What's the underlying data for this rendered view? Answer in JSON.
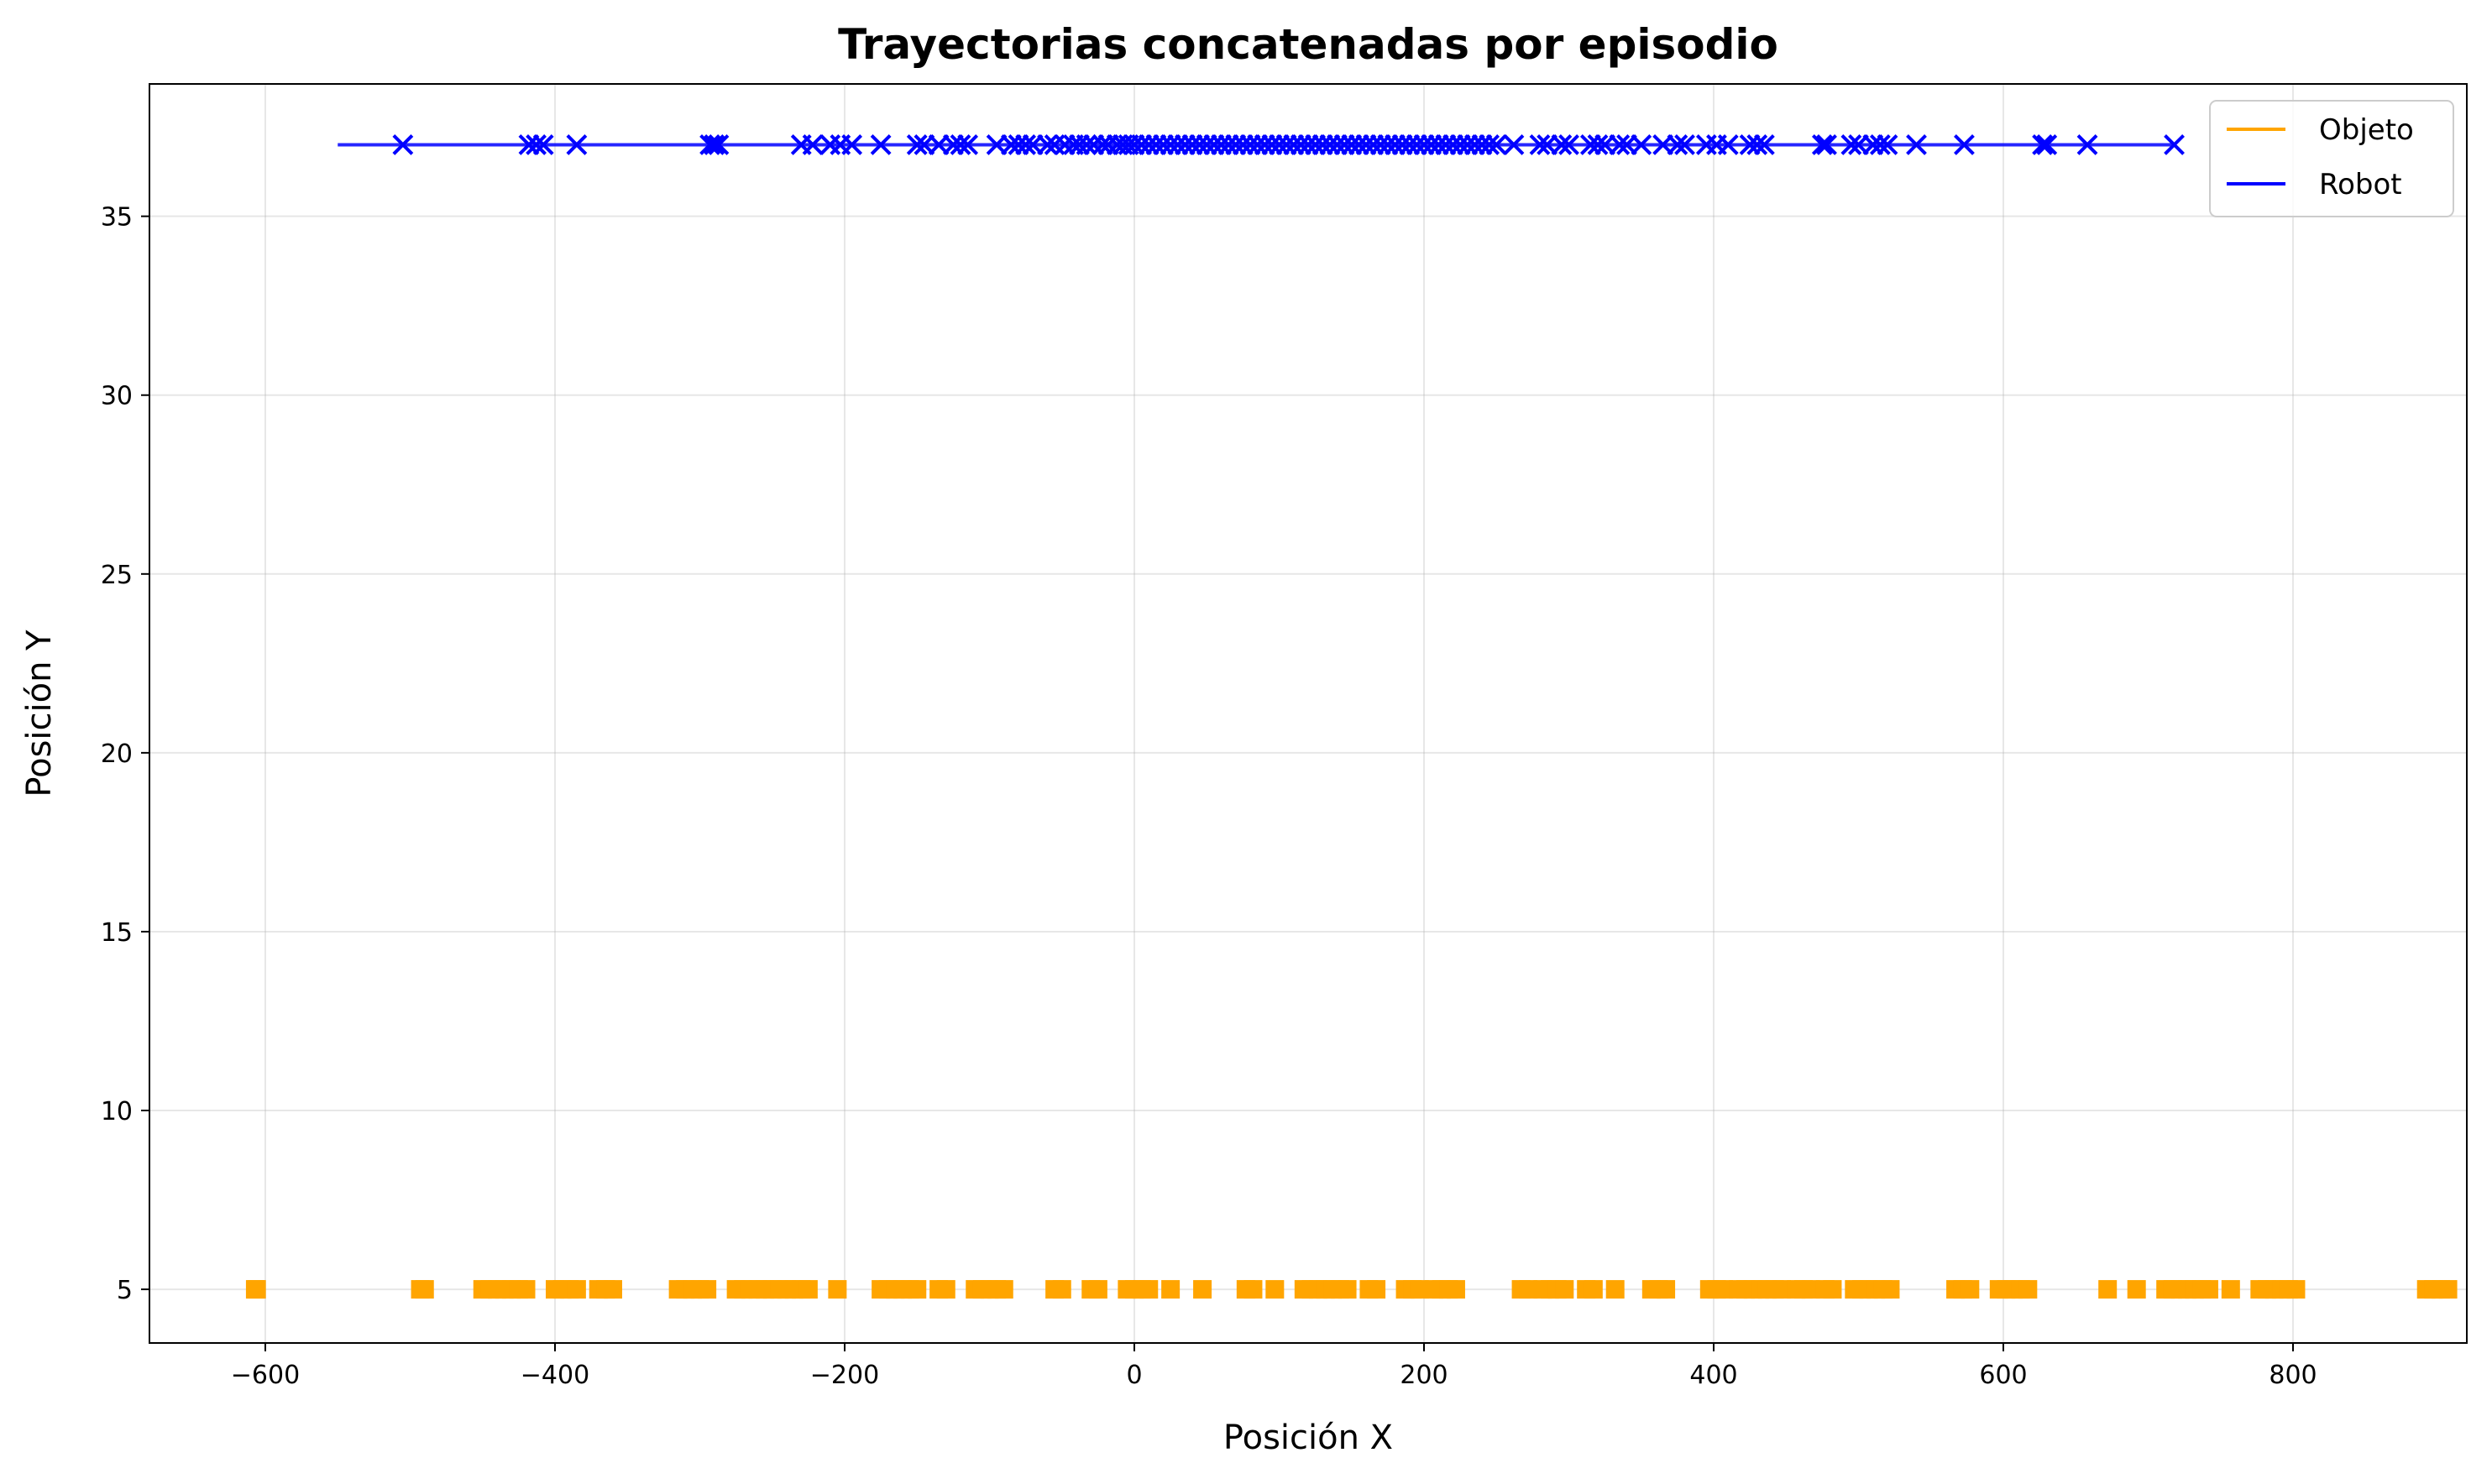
{
  "chart_data": {
    "type": "scatter",
    "title": "Trayectorias concatenadas por episodio",
    "xlabel": "Posición X",
    "ylabel": "Posición Y",
    "xlim": [
      -680,
      920
    ],
    "ylim": [
      3.5,
      38.7
    ],
    "xticks": [
      -600,
      -400,
      -200,
      0,
      200,
      400,
      600,
      800
    ],
    "xtick_labels": [
      "−600",
      "−400",
      "−200",
      "0",
      "200",
      "400",
      "600",
      "800"
    ],
    "yticks": [
      5,
      10,
      15,
      20,
      25,
      30,
      35
    ],
    "ytick_labels": [
      "5",
      "10",
      "15",
      "20",
      "25",
      "30",
      "35"
    ],
    "grid": true,
    "legend_position": "top-right",
    "series": [
      {
        "name": "Objeto",
        "color": "#FFA500",
        "marker": "square",
        "y": 5,
        "x": [
          -607,
          -606,
          -493,
          -490,
          -450,
          -445,
          -440,
          -435,
          -430,
          -425,
          -420,
          -400,
          -395,
          -390,
          -385,
          -370,
          -365,
          -360,
          -315,
          -310,
          -305,
          -300,
          -295,
          -275,
          -270,
          -265,
          -260,
          -255,
          -250,
          -245,
          -240,
          -235,
          -230,
          -225,
          -205,
          -175,
          -170,
          -165,
          -160,
          -155,
          -150,
          -135,
          -130,
          -110,
          -105,
          -100,
          -95,
          -90,
          -55,
          -50,
          -30,
          -25,
          -5,
          0,
          5,
          10,
          25,
          47,
          77,
          82,
          97,
          117,
          122,
          127,
          132,
          137,
          142,
          147,
          162,
          167,
          187,
          192,
          197,
          207,
          212,
          217,
          222,
          267,
          272,
          282,
          287,
          292,
          297,
          312,
          317,
          332,
          357,
          362,
          367,
          397,
          402,
          407,
          417,
          422,
          427,
          432,
          437,
          442,
          447,
          457,
          462,
          467,
          477,
          482,
          497,
          502,
          507,
          512,
          517,
          522,
          567,
          572,
          577,
          597,
          602,
          607,
          612,
          617,
          672,
          692,
          712,
          717,
          722,
          727,
          732,
          737,
          742,
          757,
          777,
          782,
          787,
          792,
          797,
          802,
          892,
          897,
          902,
          907
        ]
      },
      {
        "name": "Robot",
        "color": "#0000FF",
        "marker": "x",
        "y": 37,
        "line_range": [
          -550,
          718
        ],
        "x": [
          -505,
          -418,
          -413,
          -408,
          -385,
          -293,
          -290,
          -287,
          -230,
          -222,
          -210,
          -203,
          -195,
          -175,
          -150,
          -145,
          -135,
          -125,
          -120,
          -115,
          -95,
          -85,
          -80,
          -75,
          -70,
          -60,
          -55,
          -48,
          -42,
          -38,
          -33,
          -28,
          -22,
          -18,
          -12,
          -8,
          -4,
          0,
          5,
          10,
          15,
          20,
          25,
          30,
          35,
          40,
          45,
          50,
          55,
          60,
          65,
          70,
          75,
          80,
          85,
          90,
          95,
          100,
          105,
          110,
          115,
          120,
          125,
          130,
          135,
          140,
          145,
          150,
          155,
          160,
          165,
          170,
          175,
          180,
          185,
          190,
          195,
          200,
          205,
          210,
          215,
          220,
          225,
          230,
          235,
          240,
          245,
          250,
          262,
          280,
          285,
          295,
          300,
          315,
          320,
          325,
          335,
          340,
          350,
          365,
          375,
          380,
          395,
          402,
          410,
          425,
          430,
          435,
          475,
          478,
          495,
          500,
          510,
          515,
          520,
          540,
          573,
          627,
          630,
          658,
          718
        ]
      }
    ]
  }
}
